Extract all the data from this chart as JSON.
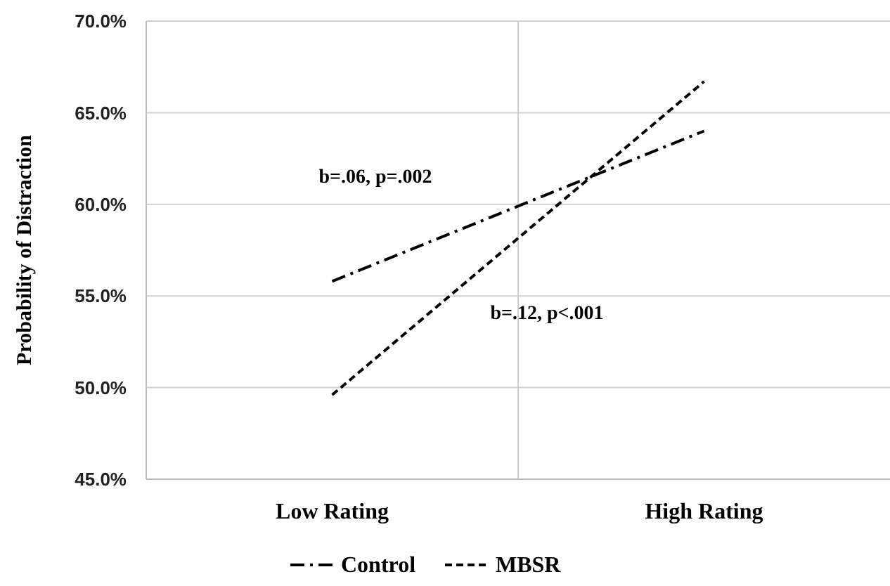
{
  "chart_data": {
    "type": "line",
    "ylabel": "Probability of Distraction",
    "categories": [
      "Low Rating",
      "High Rating"
    ],
    "series": [
      {
        "name": "Control",
        "color": "#000000",
        "values": [
          55.8,
          64.0
        ],
        "line_style": "dashdot"
      },
      {
        "name": "MBSR",
        "color": "#000000",
        "values": [
          49.6,
          66.7
        ],
        "line_style": "dashed"
      }
    ],
    "ylim": [
      45,
      70
    ],
    "yticks": [
      {
        "value": 45,
        "label": "45.0%"
      },
      {
        "value": 50,
        "label": "50.0%"
      },
      {
        "value": 55,
        "label": "55.0%"
      },
      {
        "value": 60,
        "label": "60.0%"
      },
      {
        "value": 65,
        "label": "65.0%"
      },
      {
        "value": 70,
        "label": "70.0%"
      }
    ],
    "grid": true,
    "legend": "bottom",
    "marker": "none",
    "annotations": [
      "b=.06, p=.002",
      "b=.12, p<.001"
    ]
  }
}
